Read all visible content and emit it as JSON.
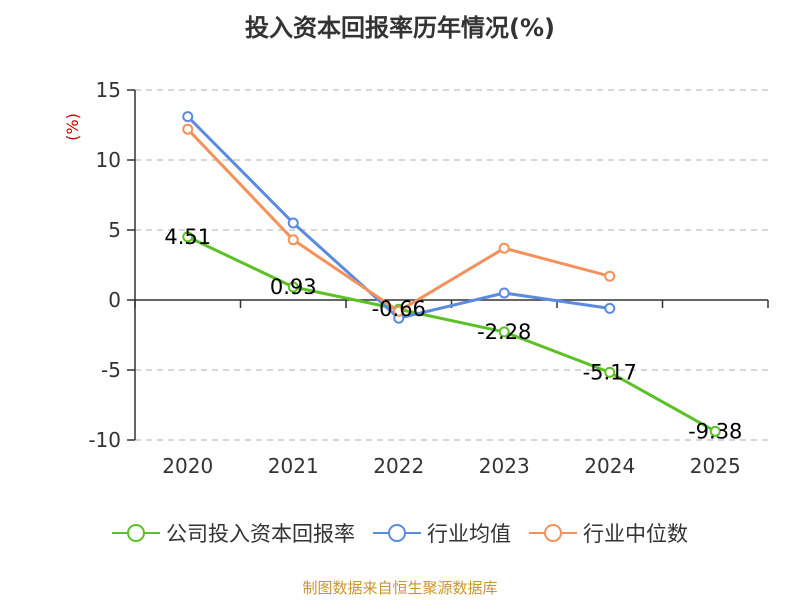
{
  "title": "投入资本回报率历年情况(%)",
  "source": "制图数据来自恒生聚源数据库",
  "colors": {
    "company": "#5cc127",
    "industry_avg": "#5b8be0",
    "industry_median": "#f5915a",
    "ylabel": "#cc0000"
  },
  "chart_data": {
    "type": "line",
    "title": "投入资本回报率历年情况(%)",
    "ylabel": "(%)",
    "xlabel": "",
    "categories": [
      "2020",
      "2021",
      "2022",
      "2023",
      "2024",
      "2025"
    ],
    "ylim": [
      -10,
      15
    ],
    "yticks": [
      15,
      10,
      5,
      0,
      -5,
      -10
    ],
    "grid": true,
    "legend_position": "bottom",
    "series": [
      {
        "name": "公司投入资本回报率",
        "values": [
          4.51,
          0.93,
          -0.66,
          -2.28,
          -5.17,
          -9.38
        ],
        "labels": [
          "4.51",
          "0.93",
          "-0.66",
          "-2.28",
          "-5.17",
          "-9.38"
        ]
      },
      {
        "name": "行业均值",
        "values": [
          13.1,
          5.5,
          -1.3,
          0.5,
          -0.6,
          null
        ]
      },
      {
        "name": "行业中位数",
        "values": [
          12.2,
          4.3,
          -0.8,
          3.7,
          1.7,
          null
        ]
      }
    ]
  }
}
